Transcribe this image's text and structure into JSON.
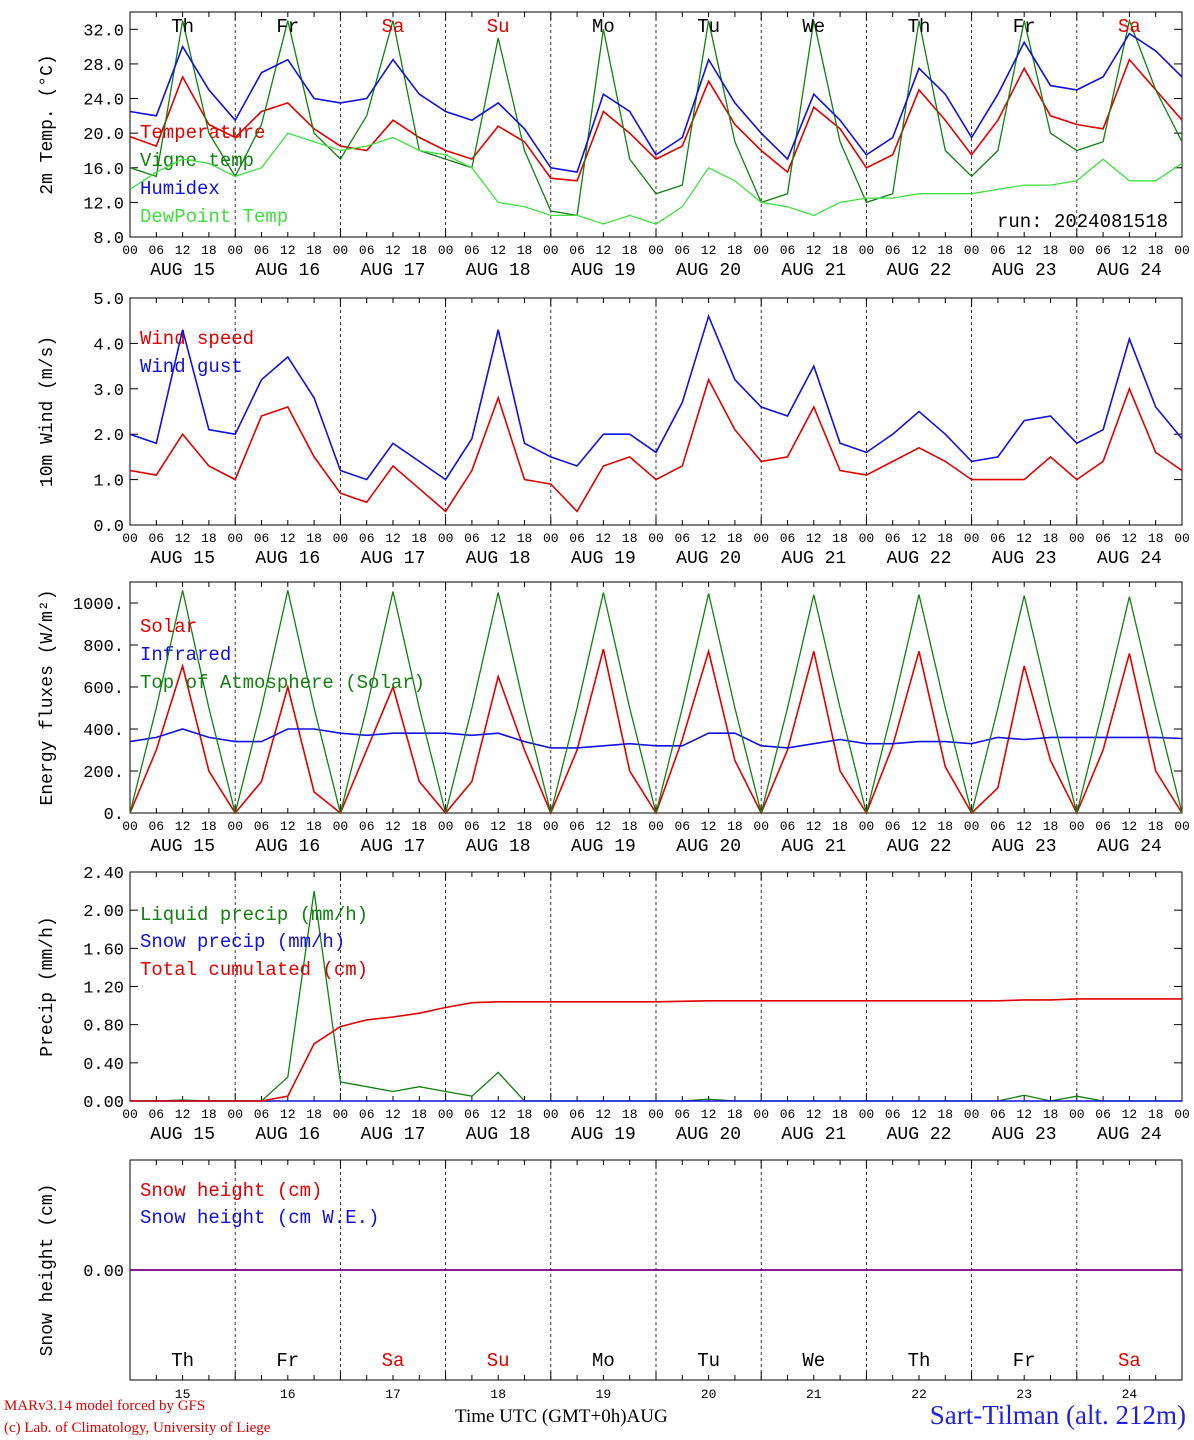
{
  "colors": {
    "red": "#e00000",
    "blue": "#1010e0",
    "green": "#108010",
    "lightgreen": "#40e040",
    "purple": "#700080"
  },
  "days": [
    {
      "dow": "Th",
      "date": "AUG 15",
      "num": "15",
      "weekend": false
    },
    {
      "dow": "Fr",
      "date": "AUG 16",
      "num": "16",
      "weekend": false
    },
    {
      "dow": "Sa",
      "date": "AUG 17",
      "num": "17",
      "weekend": true
    },
    {
      "dow": "Su",
      "date": "AUG 18",
      "num": "18",
      "weekend": true
    },
    {
      "dow": "Mo",
      "date": "AUG 19",
      "num": "19",
      "weekend": false
    },
    {
      "dow": "Tu",
      "date": "AUG 20",
      "num": "20",
      "weekend": false
    },
    {
      "dow": "We",
      "date": "AUG 21",
      "num": "21",
      "weekend": false
    },
    {
      "dow": "Th",
      "date": "AUG 22",
      "num": "22",
      "weekend": false
    },
    {
      "dow": "Fr",
      "date": "AUG 23",
      "num": "23",
      "weekend": false
    },
    {
      "dow": "Sa",
      "date": "AUG 24",
      "num": "24",
      "weekend": true
    }
  ],
  "hour_ticks": [
    "00",
    "06",
    "12",
    "18"
  ],
  "footer": {
    "credit_line1": "MARv3.14 model forced by GFS",
    "credit_line2": "(c) Lab. of Climatology, University of Liege",
    "x_title": "Time UTC (GMT+0h)",
    "month": "AUG",
    "station": "Sart-Tilman (alt. 212m)"
  },
  "chart_data": [
    {
      "type": "line",
      "ylabel": "2m Temp. (°C)",
      "ylim": [
        8,
        34
      ],
      "ytick_labels": [
        "8.0",
        "12.0",
        "16.0",
        "20.0",
        "24.0",
        "28.0",
        "32.0"
      ],
      "annotation": "run: 2024081518",
      "x_hours": [
        0,
        6,
        12,
        18,
        24,
        30,
        36,
        42,
        48,
        54,
        60,
        66,
        72,
        78,
        84,
        90,
        96,
        102,
        108,
        114,
        120,
        126,
        132,
        138,
        144,
        150,
        156,
        162,
        168,
        174,
        180,
        186,
        192,
        198,
        204,
        210,
        216,
        222,
        228,
        234,
        240
      ],
      "series": [
        {
          "name": "Temperature",
          "color": "red",
          "values": [
            19.6,
            18.5,
            26.5,
            21,
            19.5,
            22.5,
            23.5,
            20.5,
            18.5,
            18,
            21.5,
            19.5,
            18,
            17,
            20.8,
            19,
            14.8,
            14.5,
            22.5,
            20,
            17,
            18.5,
            26,
            21,
            18,
            15.5,
            23,
            20.5,
            16,
            17.5,
            25,
            21.5,
            17.5,
            21.5,
            27.5,
            22,
            21,
            20.5,
            28.5,
            25,
            21.5
          ]
        },
        {
          "name": "Vigne temp",
          "color": "green",
          "values": [
            16,
            15,
            33,
            20,
            15,
            21,
            33,
            20,
            17,
            22,
            33,
            18,
            17,
            16,
            31,
            18,
            11,
            10.5,
            32,
            17,
            13,
            14,
            33,
            19,
            12,
            13,
            33,
            19,
            12,
            13,
            33,
            18,
            15,
            18,
            33,
            20,
            18,
            19,
            33,
            25,
            19
          ]
        },
        {
          "name": "Humidex",
          "color": "blue",
          "values": [
            22.5,
            22,
            30,
            25,
            21.5,
            27,
            28.5,
            24,
            23.5,
            24,
            28.5,
            24.5,
            22.5,
            21.5,
            23.5,
            20.5,
            16,
            15.5,
            24.5,
            22.5,
            17.5,
            19.5,
            28.5,
            23.5,
            20,
            17,
            24.5,
            21.5,
            17.5,
            19.5,
            27.5,
            24.5,
            19.5,
            24.5,
            30.5,
            25.5,
            25,
            26.5,
            31.5,
            29.5,
            26.5
          ]
        },
        {
          "name": "DewPoint Temp",
          "color": "lightgreen",
          "values": [
            13.5,
            15.5,
            17,
            16.5,
            15,
            16,
            20,
            19,
            18,
            18.5,
            19.5,
            18,
            17.5,
            16,
            12,
            11.5,
            10.5,
            10.5,
            9.5,
            10.5,
            9.5,
            11.5,
            16,
            14.5,
            12,
            11.5,
            10.5,
            12,
            12.5,
            12.5,
            13,
            13,
            13,
            13.5,
            14,
            14,
            14.5,
            17,
            14.5,
            14.5,
            16.5
          ]
        }
      ]
    },
    {
      "type": "line",
      "ylabel": "10m Wind (m/s)",
      "ylim": [
        0,
        5
      ],
      "ytick_labels": [
        "0.0",
        "1.0",
        "2.0",
        "3.0",
        "4.0",
        "5.0"
      ],
      "x_hours": [
        0,
        6,
        12,
        18,
        24,
        30,
        36,
        42,
        48,
        54,
        60,
        66,
        72,
        78,
        84,
        90,
        96,
        102,
        108,
        114,
        120,
        126,
        132,
        138,
        144,
        150,
        156,
        162,
        168,
        174,
        180,
        186,
        192,
        198,
        204,
        210,
        216,
        222,
        228,
        234,
        240
      ],
      "series": [
        {
          "name": "Wind speed",
          "color": "red",
          "values": [
            1.2,
            1.1,
            2.0,
            1.3,
            1.0,
            2.4,
            2.6,
            1.5,
            0.7,
            0.5,
            1.3,
            0.8,
            0.3,
            1.2,
            2.8,
            1.0,
            0.9,
            0.3,
            1.3,
            1.5,
            1.0,
            1.3,
            3.2,
            2.1,
            1.4,
            1.5,
            2.6,
            1.2,
            1.1,
            1.4,
            1.7,
            1.4,
            1.0,
            1.0,
            1.0,
            1.5,
            1.0,
            1.4,
            3.0,
            1.6,
            1.2
          ]
        },
        {
          "name": "Wind gust",
          "color": "blue",
          "values": [
            2.0,
            1.8,
            4.3,
            2.1,
            2.0,
            3.2,
            3.7,
            2.8,
            1.2,
            1.0,
            1.8,
            1.4,
            1.0,
            1.9,
            4.3,
            1.8,
            1.5,
            1.3,
            2.0,
            2.0,
            1.6,
            2.7,
            4.6,
            3.2,
            2.6,
            2.4,
            3.5,
            1.8,
            1.6,
            2.0,
            2.5,
            2.0,
            1.4,
            1.5,
            2.3,
            2.4,
            1.8,
            2.1,
            4.1,
            2.6,
            1.9
          ]
        }
      ]
    },
    {
      "type": "line",
      "ylabel": "Energy fluxes (W/m²)",
      "ylim": [
        0,
        1100
      ],
      "ytick_labels": [
        "0.",
        "200.",
        "400.",
        "600.",
        "800.",
        "1000."
      ],
      "x_hours": [
        0,
        6,
        12,
        18,
        24,
        30,
        36,
        42,
        48,
        54,
        60,
        66,
        72,
        78,
        84,
        90,
        96,
        102,
        108,
        114,
        120,
        126,
        132,
        138,
        144,
        150,
        156,
        162,
        168,
        174,
        180,
        186,
        192,
        198,
        204,
        210,
        216,
        222,
        228,
        234,
        240
      ],
      "series": [
        {
          "name": "Solar",
          "color": "red",
          "values": [
            0,
            300,
            700,
            200,
            0,
            150,
            600,
            100,
            0,
            300,
            600,
            150,
            0,
            150,
            650,
            300,
            0,
            300,
            780,
            200,
            0,
            350,
            770,
            250,
            0,
            300,
            770,
            200,
            0,
            320,
            770,
            220,
            0,
            120,
            700,
            250,
            0,
            300,
            760,
            200,
            0
          ]
        },
        {
          "name": "Infrared",
          "color": "blue",
          "values": [
            340,
            360,
            400,
            360,
            340,
            340,
            400,
            400,
            380,
            370,
            380,
            380,
            380,
            370,
            380,
            340,
            310,
            310,
            320,
            330,
            320,
            320,
            380,
            380,
            320,
            310,
            330,
            350,
            330,
            330,
            340,
            340,
            330,
            360,
            350,
            360,
            360,
            360,
            360,
            360,
            355
          ]
        },
        {
          "name": "Top of Atmosphere (Solar)",
          "color": "green",
          "values": [
            0,
            500,
            1060,
            500,
            0,
            500,
            1060,
            500,
            0,
            500,
            1055,
            500,
            0,
            500,
            1050,
            500,
            0,
            500,
            1050,
            500,
            0,
            500,
            1045,
            500,
            0,
            500,
            1040,
            500,
            0,
            500,
            1040,
            500,
            0,
            500,
            1035,
            500,
            0,
            500,
            1030,
            500,
            0
          ]
        }
      ]
    },
    {
      "type": "line",
      "ylabel": "Precip (mm/h)",
      "ylim": [
        0,
        2.4
      ],
      "ytick_labels": [
        "0.00",
        "0.40",
        "0.80",
        "1.20",
        "1.60",
        "2.00",
        "2.40"
      ],
      "x_hours": [
        0,
        6,
        12,
        18,
        24,
        30,
        36,
        42,
        48,
        54,
        60,
        66,
        72,
        78,
        84,
        90,
        96,
        102,
        108,
        114,
        120,
        126,
        132,
        138,
        144,
        150,
        156,
        162,
        168,
        174,
        180,
        186,
        192,
        198,
        204,
        210,
        216,
        222,
        228,
        234,
        240
      ],
      "series": [
        {
          "name": "Liquid precip (mm/h)",
          "color": "green",
          "values": [
            0,
            0,
            0.01,
            0,
            0,
            0,
            0.25,
            2.2,
            0.2,
            0.15,
            0.1,
            0.15,
            0.1,
            0.05,
            0.3,
            0,
            0,
            0,
            0,
            0,
            0,
            0,
            0.02,
            0,
            0,
            0,
            0,
            0,
            0,
            0,
            0,
            0,
            0,
            0,
            0.06,
            0,
            0.05,
            0,
            0,
            0,
            0
          ]
        },
        {
          "name": "Snow precip (mm/h)",
          "color": "blue",
          "values": [
            0,
            0,
            0,
            0,
            0,
            0,
            0,
            0,
            0,
            0,
            0,
            0,
            0,
            0,
            0,
            0,
            0,
            0,
            0,
            0,
            0,
            0,
            0,
            0,
            0,
            0,
            0,
            0,
            0,
            0,
            0,
            0,
            0,
            0,
            0,
            0,
            0,
            0,
            0,
            0,
            0
          ]
        },
        {
          "name": "Total cumulated (cm)",
          "color": "red",
          "values": [
            0,
            0,
            0,
            0,
            0,
            0,
            0.05,
            0.6,
            0.78,
            0.85,
            0.88,
            0.92,
            0.98,
            1.03,
            1.04,
            1.04,
            1.04,
            1.04,
            1.04,
            1.04,
            1.04,
            1.045,
            1.05,
            1.05,
            1.05,
            1.05,
            1.05,
            1.05,
            1.05,
            1.05,
            1.05,
            1.05,
            1.05,
            1.05,
            1.06,
            1.06,
            1.07,
            1.07,
            1.07,
            1.07,
            1.07
          ]
        }
      ]
    },
    {
      "type": "line",
      "ylabel": "Snow height (cm)",
      "ylim": [
        -1,
        1
      ],
      "ytick_labels": [
        "0.00"
      ],
      "x_hours": [
        0,
        240
      ],
      "series": [
        {
          "name": "Snow height (cm)",
          "color": "red",
          "values": [
            0,
            0
          ]
        },
        {
          "name": "Snow height (cm W.E.)",
          "color": "blue",
          "values": [
            0,
            0
          ]
        }
      ]
    }
  ]
}
